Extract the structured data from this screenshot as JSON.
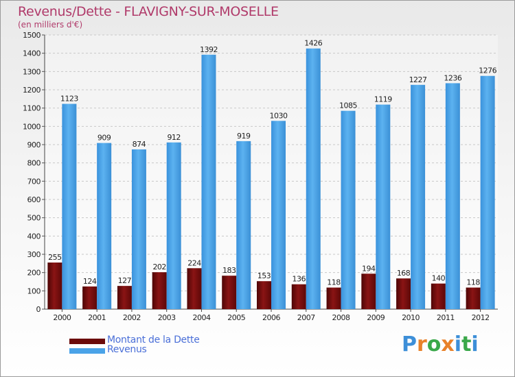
{
  "chart_data": {
    "type": "bar",
    "title": "Revenus/Dette - FLAVIGNY-SUR-MOSELLE",
    "subtitle": "(en milliers d'€)",
    "xlabel": "",
    "ylabel": "",
    "ylim": [
      0,
      1500
    ],
    "yticks": [
      0,
      100,
      200,
      300,
      400,
      500,
      600,
      700,
      800,
      900,
      1000,
      1100,
      1200,
      1300,
      1400,
      1500
    ],
    "categories": [
      "2000",
      "2001",
      "2002",
      "2003",
      "2004",
      "2005",
      "2006",
      "2007",
      "2008",
      "2009",
      "2010",
      "2011",
      "2012"
    ],
    "series": [
      {
        "name": "Montant de la Dette",
        "color": "#7a1010",
        "values": [
          255,
          124,
          127,
          202,
          224,
          183,
          153,
          136,
          118,
          194,
          168,
          140,
          118
        ]
      },
      {
        "name": "Revenus",
        "color": "#4aa3e8",
        "values": [
          1123,
          909,
          874,
          912,
          1392,
          919,
          1030,
          1426,
          1085,
          1119,
          1227,
          1236,
          1276
        ]
      }
    ],
    "grid": true,
    "legend": "bottom-left"
  },
  "legend": {
    "items": [
      {
        "label": "Montant de la Dette",
        "color": "#6b0a0a"
      },
      {
        "label": "Revenus",
        "color": "#4aa3e8"
      }
    ]
  },
  "logo": {
    "text": "Proxiti",
    "colors": [
      "#3d8fd8",
      "#e8822a",
      "#3aa84a",
      "#e8822a",
      "#3d8fd8",
      "#3aa84a",
      "#3d8fd8"
    ]
  }
}
